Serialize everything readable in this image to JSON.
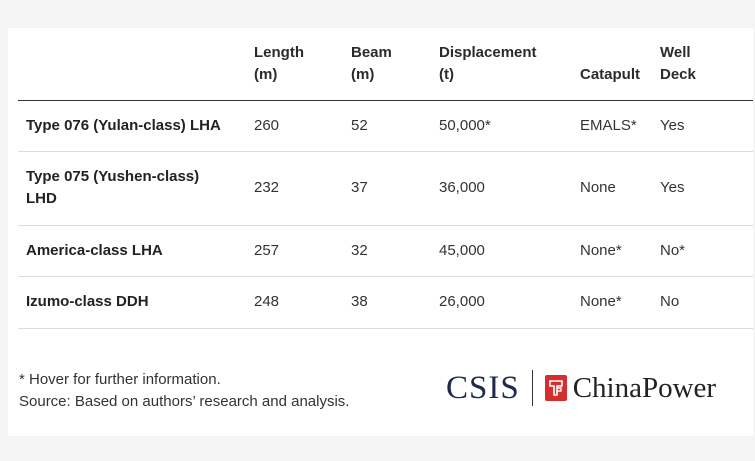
{
  "table": {
    "headers": [
      "",
      "Length\n(m)",
      "Beam\n(m)",
      "Displacement\n(t)",
      "Catapult",
      "Well\nDeck"
    ],
    "rows": [
      [
        "Type 076 (Yulan-class) LHA",
        "260",
        "52",
        "50,000*",
        "EMALS*",
        "Yes"
      ],
      [
        "Type 075 (Yushen-class) LHD",
        "232",
        "37",
        "36,000",
        "None",
        "Yes"
      ],
      [
        "America-class LHA",
        "257",
        "32",
        "45,000",
        "None*",
        "No*"
      ],
      [
        "Izumo-class DDH",
        "248",
        "38",
        "26,000",
        "None*",
        "No"
      ]
    ]
  },
  "footnote": {
    "line1": "* Hover for further information.",
    "line2": "Source: Based on authors’ research and analysis."
  },
  "logos": {
    "csis": "CSIS",
    "chinapower": "ChinaPower",
    "accent_color": "#d32f2f",
    "csis_color": "#1e2a4a"
  }
}
